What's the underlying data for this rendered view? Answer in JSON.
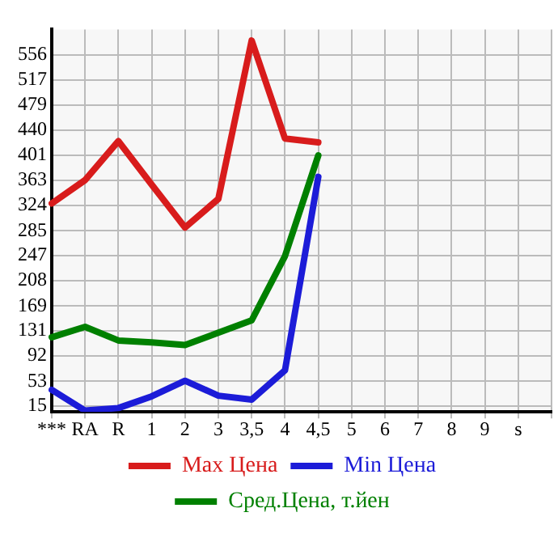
{
  "chart_data": {
    "type": "line",
    "categories": [
      "***",
      "RA",
      "R",
      "1",
      "2",
      "3",
      "3,5",
      "4",
      "4,5",
      "5",
      "6",
      "7",
      "8",
      "9",
      "s",
      null
    ],
    "series": [
      {
        "name": "Max Цена",
        "color": "#d81c1c",
        "values": [
          327,
          363,
          423,
          356,
          290,
          334,
          578,
          427,
          421,
          null,
          null,
          null,
          null,
          null,
          null,
          null
        ]
      },
      {
        "name": "Min Цена",
        "color": "#1c1cd8",
        "values": [
          40,
          8,
          12,
          30,
          54,
          31,
          25,
          70,
          368,
          null,
          null,
          null,
          null,
          null,
          null,
          null
        ]
      },
      {
        "name": "Сред.Цена, т.йен",
        "color": "#008000",
        "values": [
          121,
          137,
          116,
          113,
          109,
          128,
          147,
          246,
          401,
          null,
          null,
          null,
          null,
          null,
          null,
          null
        ]
      }
    ],
    "ylim": [
      6,
      595
    ],
    "yticks": [
      15,
      53,
      92,
      131,
      169,
      208,
      247,
      285,
      324,
      363,
      401,
      440,
      479,
      517,
      556
    ],
    "grid": true,
    "legend": "bottom",
    "marker": "none",
    "line_style": "solid"
  }
}
